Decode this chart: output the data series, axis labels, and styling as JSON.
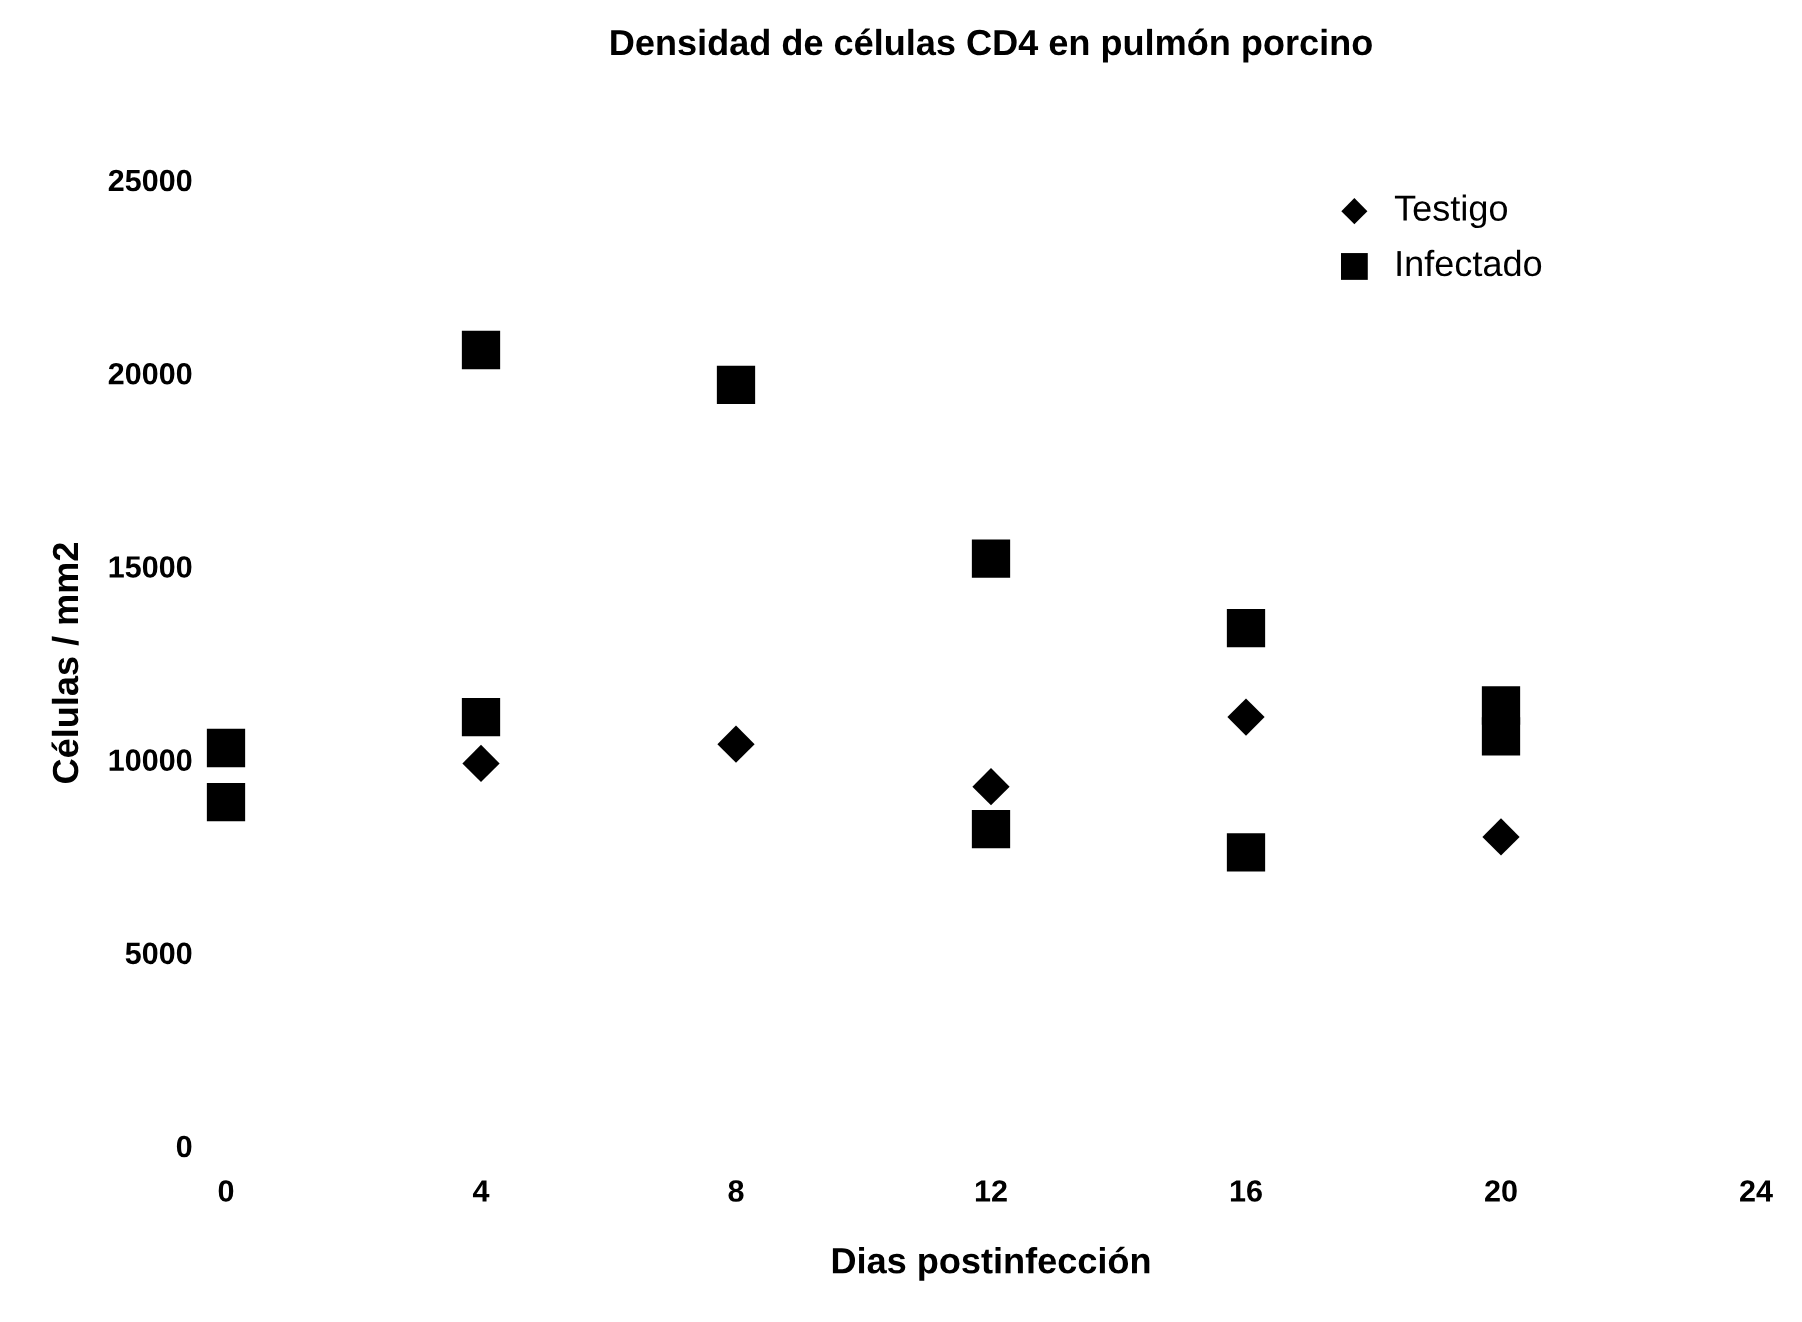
{
  "chart_data": {
    "type": "scatter",
    "title": "Densidad de células CD4 en pulmón porcino",
    "xlabel": "Dias postinfección",
    "ylabel": "Células / mm2",
    "series": [
      {
        "name": "Testigo",
        "color": "#000000",
        "marker": "diamond",
        "x": [
          4,
          8,
          12,
          16,
          20
        ],
        "values": [
          9900,
          10400,
          9300,
          11100,
          8000
        ]
      },
      {
        "name": "Infectado",
        "color": "#000000",
        "marker": "square",
        "x": [
          0,
          0,
          4,
          4,
          8,
          12,
          12,
          16,
          16,
          20,
          20
        ],
        "values": [
          10300,
          8900,
          20600,
          11100,
          19700,
          15200,
          8200,
          13400,
          7600,
          11400,
          10600
        ]
      }
    ],
    "xlim": [
      0,
      24
    ],
    "xticks": [
      0,
      4,
      8,
      12,
      16,
      20,
      24
    ],
    "ylim": [
      0,
      25000
    ],
    "yticks": [
      0,
      5000,
      10000,
      15000,
      20000,
      25000
    ],
    "grid": false,
    "legend": "top right"
  }
}
